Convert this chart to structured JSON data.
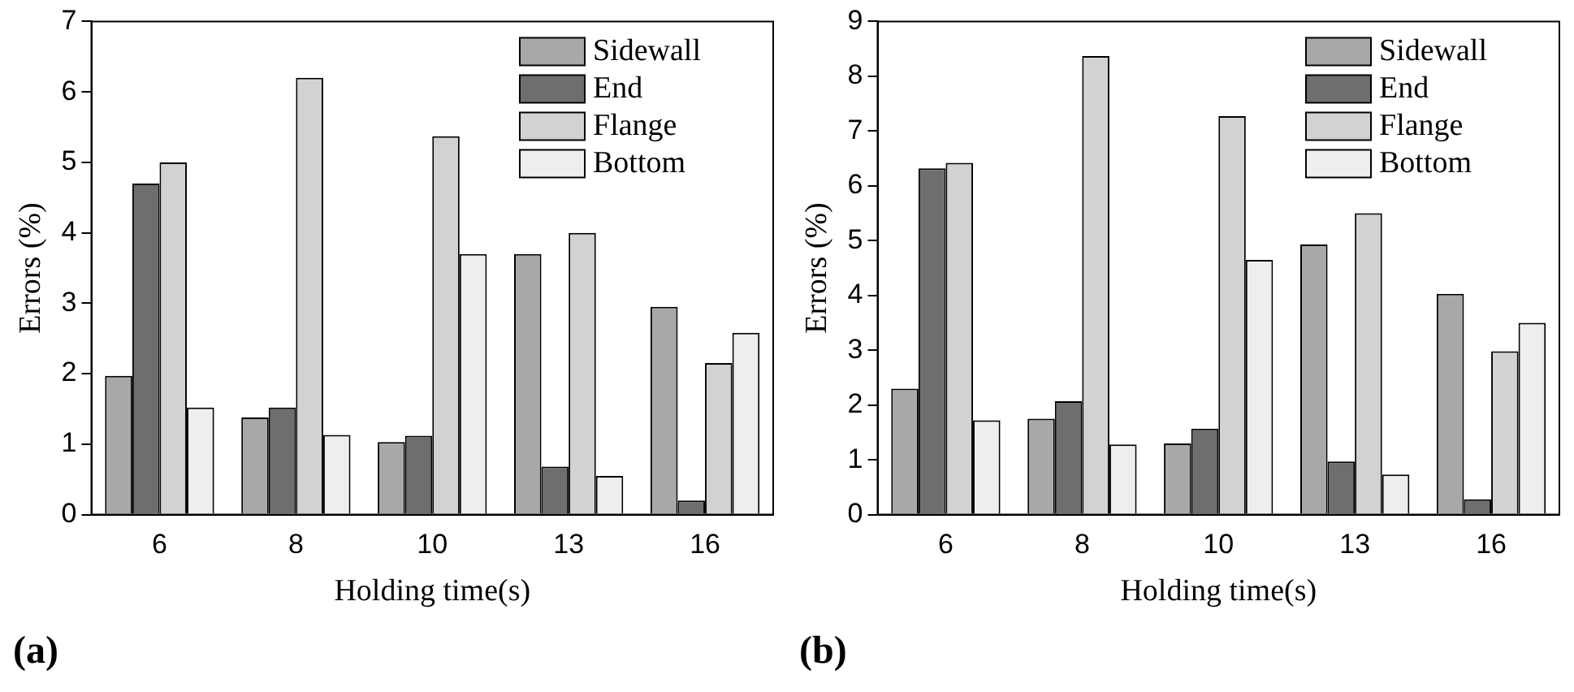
{
  "chart_data": [
    {
      "type": "bar",
      "categories": [
        "6",
        "8",
        "10",
        "13",
        "16"
      ],
      "xlabel": "Holding time(s)",
      "ylabel": "Errors (%)",
      "ylim": [
        0,
        7
      ],
      "yticks": [
        0,
        1,
        2,
        3,
        4,
        5,
        6,
        7
      ],
      "grid": false,
      "legend": "top right",
      "annotations": [
        "(a)"
      ],
      "series": [
        {
          "name": "Sidewall",
          "color": "#a8a8a8",
          "values": [
            1.97,
            1.38,
            1.03,
            3.7,
            2.95
          ]
        },
        {
          "name": "End",
          "color": "#6e6e6e",
          "values": [
            4.7,
            1.52,
            1.12,
            0.68,
            0.2
          ]
        },
        {
          "name": "Flange",
          "color": "#d2d2d2",
          "values": [
            5.0,
            6.2,
            5.37,
            4.0,
            2.15
          ]
        },
        {
          "name": "Bottom",
          "color": "#eeeeee",
          "values": [
            1.52,
            1.13,
            3.7,
            0.55,
            2.58
          ]
        }
      ]
    },
    {
      "type": "bar",
      "categories": [
        "6",
        "8",
        "10",
        "13",
        "16"
      ],
      "xlabel": "Holding time(s)",
      "ylabel": "Errors (%)",
      "ylim": [
        0,
        9
      ],
      "yticks": [
        0,
        1,
        2,
        3,
        4,
        5,
        6,
        7,
        8,
        9
      ],
      "grid": false,
      "legend": "top right",
      "annotations": [
        "(b)"
      ],
      "series": [
        {
          "name": "Sidewall",
          "color": "#a8a8a8",
          "values": [
            2.3,
            1.75,
            1.3,
            4.93,
            4.03
          ]
        },
        {
          "name": "End",
          "color": "#6e6e6e",
          "values": [
            6.32,
            2.07,
            1.57,
            0.97,
            0.28
          ]
        },
        {
          "name": "Flange",
          "color": "#d2d2d2",
          "values": [
            6.42,
            8.37,
            7.27,
            5.5,
            2.98
          ]
        },
        {
          "name": "Bottom",
          "color": "#eeeeee",
          "values": [
            1.72,
            1.28,
            4.65,
            0.73,
            3.5
          ]
        }
      ]
    }
  ]
}
